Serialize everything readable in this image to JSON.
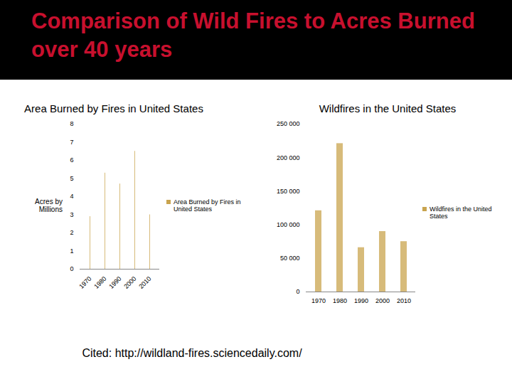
{
  "title": "Comparison of Wild Fires to Acres Burned over 40 years",
  "citation": "Cited: http://wildland-fires.sciencedaily.com/",
  "chart_data": [
    {
      "type": "bar",
      "title": "Area Burned by Fires in United States",
      "y_label": "Acres by Millions",
      "categories": [
        "1970",
        "1980",
        "1990",
        "2000",
        "2010"
      ],
      "series": [
        {
          "name": "Area Burned by Fires in United States",
          "color": "#c9a44e",
          "values": [
            2.9,
            5.3,
            4.7,
            6.5,
            3.0
          ]
        }
      ],
      "ylim": [
        0,
        8
      ],
      "yticks": [
        0,
        1,
        2,
        3,
        4,
        5,
        6,
        7,
        8
      ],
      "grid": false,
      "legend": "right"
    },
    {
      "type": "bar",
      "title": "Wildfires in the United States",
      "categories": [
        "1970",
        "1980",
        "1990",
        "2000",
        "2010"
      ],
      "series": [
        {
          "name": "Wildfires in the United States",
          "color": "#c9a44e",
          "values": [
            121000,
            221000,
            66000,
            90000,
            75000
          ]
        }
      ],
      "ylim": [
        0,
        250000
      ],
      "yticks": [
        0,
        {
          "value": 50000,
          "label": "50 000"
        },
        {
          "value": 100000,
          "label": "100 000"
        },
        {
          "value": 150000,
          "label": "150 000"
        },
        {
          "value": 200000,
          "label": "200 000"
        },
        {
          "value": 250000,
          "label": "250 000"
        }
      ],
      "grid": false,
      "legend": "right"
    }
  ]
}
